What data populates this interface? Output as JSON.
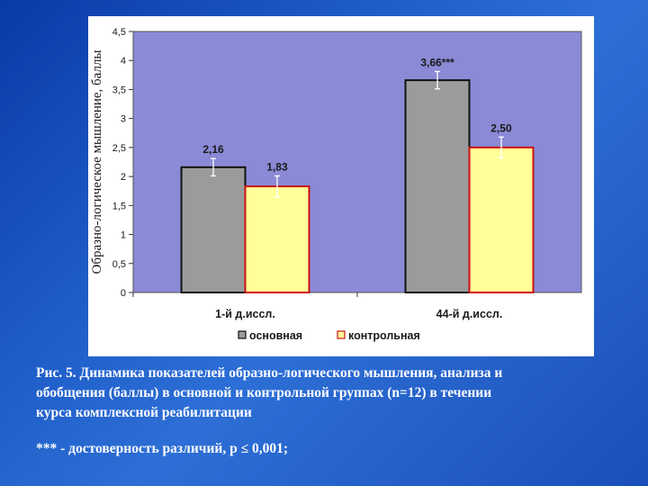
{
  "chart_data": {
    "type": "bar",
    "ylabel": "Образно-логическое мышление, баллы",
    "ylim": [
      0,
      4.5
    ],
    "ytick_step": 0.5,
    "yticks": [
      "0",
      "0,5",
      "1",
      "1,5",
      "2",
      "2,5",
      "3",
      "3,5",
      "4",
      "4,5"
    ],
    "categories": [
      "1-й д.иссл.",
      "44-й д.иссл."
    ],
    "series": [
      {
        "name": "основная",
        "values": [
          2.16,
          3.66
        ],
        "labels": [
          "2,16",
          "3,66***"
        ],
        "errors": [
          0.15,
          0.15
        ],
        "color": "#9b9b9b",
        "stroke": "#111111"
      },
      {
        "name": "контрольная",
        "values": [
          1.83,
          2.5
        ],
        "labels": [
          "1,83",
          "2,50"
        ],
        "errors": [
          0.18,
          0.18
        ],
        "color": "#ffff99",
        "stroke": "#cc1111"
      }
    ],
    "legend_position": "bottom",
    "grid": false,
    "plot_background": "#8a8ad6"
  },
  "caption": {
    "line1": "Рис. 5. Динамика показателей образно-логического мышления, анализа и",
    "line2": "обобщения (баллы) в основной и контрольной группах (n=12) в течении",
    "line3": "курса комплексной реабилитации"
  },
  "note": "*** - достоверность различий, р ≤ 0,001;"
}
